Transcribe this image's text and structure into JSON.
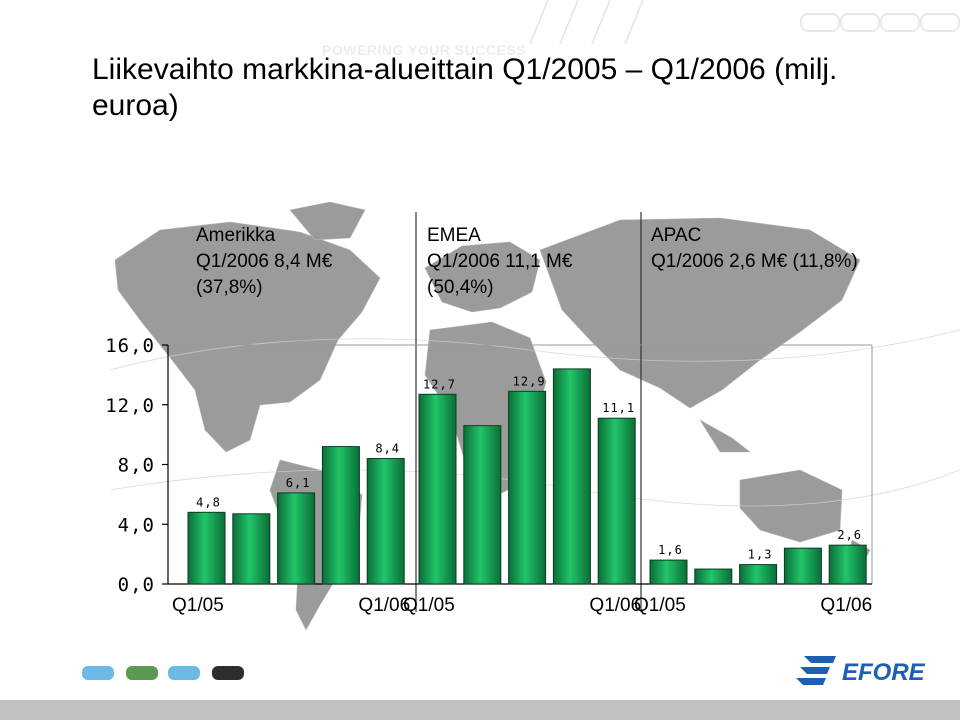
{
  "header": {
    "title": "Liikevaihto markkina-alueittain Q1/2005 – Q1/2006 (milj. euroa)",
    "tagline": "POWERING YOUR SUCCESS"
  },
  "regions": [
    {
      "name": "Amerikka",
      "line2": "Q1/2006 8,4 M€",
      "line3": "(37,8%)"
    },
    {
      "name": "EMEA",
      "line2": "Q1/2006 11,1 M€",
      "line3": "(50,4%)"
    },
    {
      "name": "APAC",
      "line2": "Q1/2006 2,6 M€ (11,8%)",
      "line3": ""
    }
  ],
  "chart_data": {
    "type": "bar",
    "title": "",
    "xlabel": "",
    "ylabel": "",
    "ylim": [
      0,
      16
    ],
    "yticks": [
      "0,0",
      "4,0",
      "8,0",
      "12,0",
      "16,0"
    ],
    "grid": false,
    "groups": [
      {
        "region": "Amerikka",
        "start_label": "Q1/05",
        "end_label": "Q1/06",
        "values": [
          4.8,
          4.7,
          6.1,
          9.2,
          8.4
        ],
        "labels": [
          "4,8",
          "",
          "6,1",
          "",
          "8,4"
        ]
      },
      {
        "region": "EMEA",
        "start_label": "Q1/05",
        "end_label": "Q1/06",
        "values": [
          12.7,
          10.6,
          12.9,
          14.4,
          11.1
        ],
        "labels": [
          "12,7",
          "",
          "12,9",
          "",
          "11,1"
        ]
      },
      {
        "region": "APAC",
        "start_label": "Q1/05",
        "end_label": "Q1/06",
        "values": [
          1.6,
          1.0,
          1.3,
          2.4,
          2.6
        ],
        "labels": [
          "1,6",
          "",
          "1,3",
          "",
          "2,6"
        ]
      }
    ],
    "colors": {
      "bar_light": "#22c56a",
      "bar_dark": "#0a6e38",
      "bar_border": "#0d3b22",
      "axis": "#000000"
    }
  },
  "logo": {
    "text": "EFORE",
    "color": "#1d5fb0"
  },
  "decor": {
    "squares": [
      "#6db9e6",
      "#5a9a52",
      "#6db9e6",
      "#2e2e2e"
    ]
  }
}
